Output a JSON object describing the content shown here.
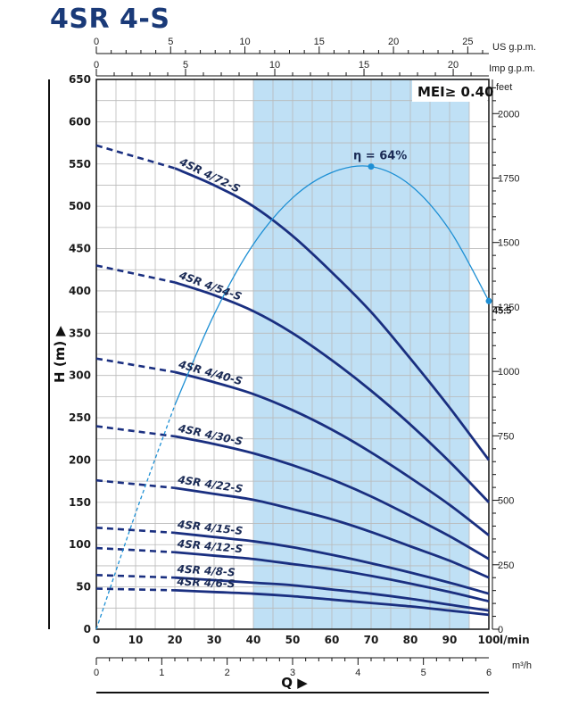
{
  "title": "4SR 4-S",
  "chart_data": {
    "type": "line",
    "title": "4SR 4-S",
    "badge": "MEI≥ 0.40",
    "xlabel": "Q",
    "ylabel": "H (m)",
    "x_unit": "l/min",
    "x_range": [
      0,
      100
    ],
    "y_range": [
      0,
      650
    ],
    "x_ticks": [
      0,
      10,
      20,
      30,
      40,
      50,
      60,
      70,
      80,
      90,
      100
    ],
    "y_ticks": [
      0,
      50,
      100,
      150,
      200,
      250,
      300,
      350,
      400,
      450,
      500,
      550,
      600,
      650
    ],
    "grid": true,
    "top_axis_us": {
      "unit": "US g.p.m.",
      "ticks": [
        0,
        5,
        10,
        15,
        20,
        25
      ]
    },
    "top_axis_imp": {
      "unit": "Imp g.p.m.",
      "ticks": [
        0,
        5,
        10,
        15,
        20
      ]
    },
    "bottom_axis_m3h": {
      "unit": "m³/h",
      "ticks": [
        0,
        1,
        2,
        3,
        4,
        5,
        6
      ]
    },
    "right_axis_feet": {
      "unit": "feet",
      "ticks": [
        0,
        250,
        500,
        750,
        1000,
        1250,
        1500,
        1750,
        2000
      ]
    },
    "recommended_range_lmin": [
      40,
      95
    ],
    "series": [
      {
        "name": "4SR 4/72-S",
        "dashed_x": [
          0,
          20
        ],
        "x": [
          0,
          20,
          30,
          40,
          50,
          60,
          70,
          80,
          90,
          100
        ],
        "y": [
          572,
          545,
          525,
          500,
          465,
          422,
          375,
          320,
          262,
          200
        ]
      },
      {
        "name": "4SR 4/54-S",
        "dashed_x": [
          0,
          20
        ],
        "x": [
          0,
          20,
          30,
          40,
          50,
          60,
          70,
          80,
          90,
          100
        ],
        "y": [
          430,
          410,
          395,
          376,
          350,
          318,
          282,
          242,
          198,
          150
        ]
      },
      {
        "name": "4SR 4/40-S",
        "dashed_x": [
          0,
          20
        ],
        "x": [
          0,
          20,
          30,
          40,
          50,
          60,
          70,
          80,
          90,
          100
        ],
        "y": [
          320,
          304,
          292,
          278,
          259,
          236,
          209,
          179,
          147,
          111
        ]
      },
      {
        "name": "4SR 4/30-S",
        "dashed_x": [
          0,
          20
        ],
        "x": [
          0,
          20,
          30,
          40,
          50,
          60,
          70,
          80,
          90,
          100
        ],
        "y": [
          240,
          228,
          219,
          208,
          194,
          177,
          157,
          134,
          110,
          83
        ]
      },
      {
        "name": "4SR 4/22-S",
        "dashed_x": [
          0,
          20
        ],
        "x": [
          0,
          20,
          30,
          40,
          50,
          60,
          70,
          80,
          90,
          100
        ],
        "y": [
          176,
          167,
          160,
          153,
          142,
          130,
          115,
          98,
          81,
          61
        ]
      },
      {
        "name": "4SR 4/15-S",
        "dashed_x": [
          0,
          20
        ],
        "x": [
          0,
          20,
          30,
          40,
          50,
          60,
          70,
          80,
          90,
          100
        ],
        "y": [
          120,
          114,
          109,
          104,
          97,
          88,
          78,
          67,
          55,
          42
        ]
      },
      {
        "name": "4SR 4/12-S",
        "dashed_x": [
          0,
          20
        ],
        "x": [
          0,
          20,
          30,
          40,
          50,
          60,
          70,
          80,
          90,
          100
        ],
        "y": [
          96,
          91,
          87,
          83,
          77,
          71,
          63,
          54,
          44,
          33
        ]
      },
      {
        "name": "4SR 4/8-S",
        "dashed_x": [
          0,
          20
        ],
        "x": [
          0,
          20,
          30,
          40,
          50,
          60,
          70,
          80,
          90,
          100
        ],
        "y": [
          64,
          61,
          58,
          55,
          52,
          47,
          42,
          36,
          29,
          22
        ]
      },
      {
        "name": "4SR 4/6-S",
        "dashed_x": [
          0,
          20
        ],
        "x": [
          0,
          20,
          30,
          40,
          50,
          60,
          70,
          80,
          90,
          100
        ],
        "y": [
          48,
          46,
          44,
          42,
          39,
          35,
          31,
          27,
          22,
          17
        ]
      }
    ],
    "efficiency": {
      "label": "η = 64%",
      "peak": {
        "x": 70,
        "y": 547
      },
      "end_label": "45.5",
      "end": {
        "x": 100,
        "y": 388
      },
      "dashed_x": [
        0,
        20
      ],
      "x": [
        0,
        10,
        20,
        30,
        40,
        50,
        60,
        70,
        80,
        90,
        100
      ],
      "y": [
        0,
        137,
        265,
        372,
        455,
        510,
        540,
        547,
        525,
        472,
        388
      ]
    },
    "colors": {
      "curve": "#1a2f80",
      "efficiency": "#1d8fd4",
      "band": "#bfe0f5",
      "grid": "#b9b9b9",
      "title": "#1a3a78"
    }
  }
}
